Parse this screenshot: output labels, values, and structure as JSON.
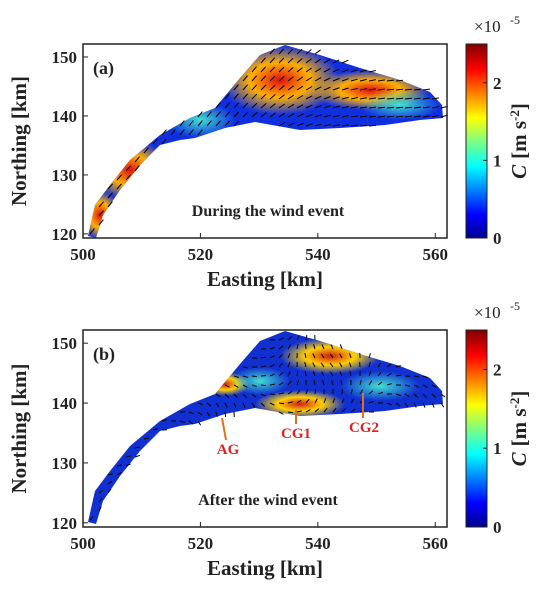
{
  "chart_data": [
    {
      "type": "map",
      "panel_label": "(a)",
      "annotation": "During the wind event",
      "xlabel": "Easting [km]",
      "ylabel": "Northing [km]",
      "xlim": [
        500,
        562
      ],
      "ylim": [
        119.3,
        152.2
      ],
      "xticks": [
        500,
        520,
        540,
        560
      ],
      "yticks": [
        120,
        130,
        140,
        150
      ],
      "colorbar": {
        "symbol": "C",
        "unit": "[m s",
        "unit_exponent": "-2",
        "unit_close": "]",
        "multiplier": "×10",
        "multiplier_exponent": "-5",
        "lim": [
          0,
          2.5
        ],
        "ticks": [
          0,
          1,
          2
        ]
      }
    },
    {
      "type": "map",
      "panel_label": "(b)",
      "annotation": "After the wind event",
      "xlabel": "Easting [km]",
      "ylabel": "Northing [km]",
      "xlim": [
        500,
        562
      ],
      "ylim": [
        119.3,
        152.2
      ],
      "xticks": [
        500,
        520,
        540,
        560
      ],
      "yticks": [
        120,
        130,
        140,
        150
      ],
      "site_labels": [
        "AG",
        "CG1",
        "CG2"
      ],
      "colorbar": {
        "symbol": "C",
        "unit": "[m s",
        "unit_exponent": "-2",
        "unit_close": "]",
        "multiplier": "×10",
        "multiplier_exponent": "-5",
        "lim": [
          0,
          2.5
        ],
        "ticks": [
          0,
          1,
          2
        ]
      }
    }
  ]
}
